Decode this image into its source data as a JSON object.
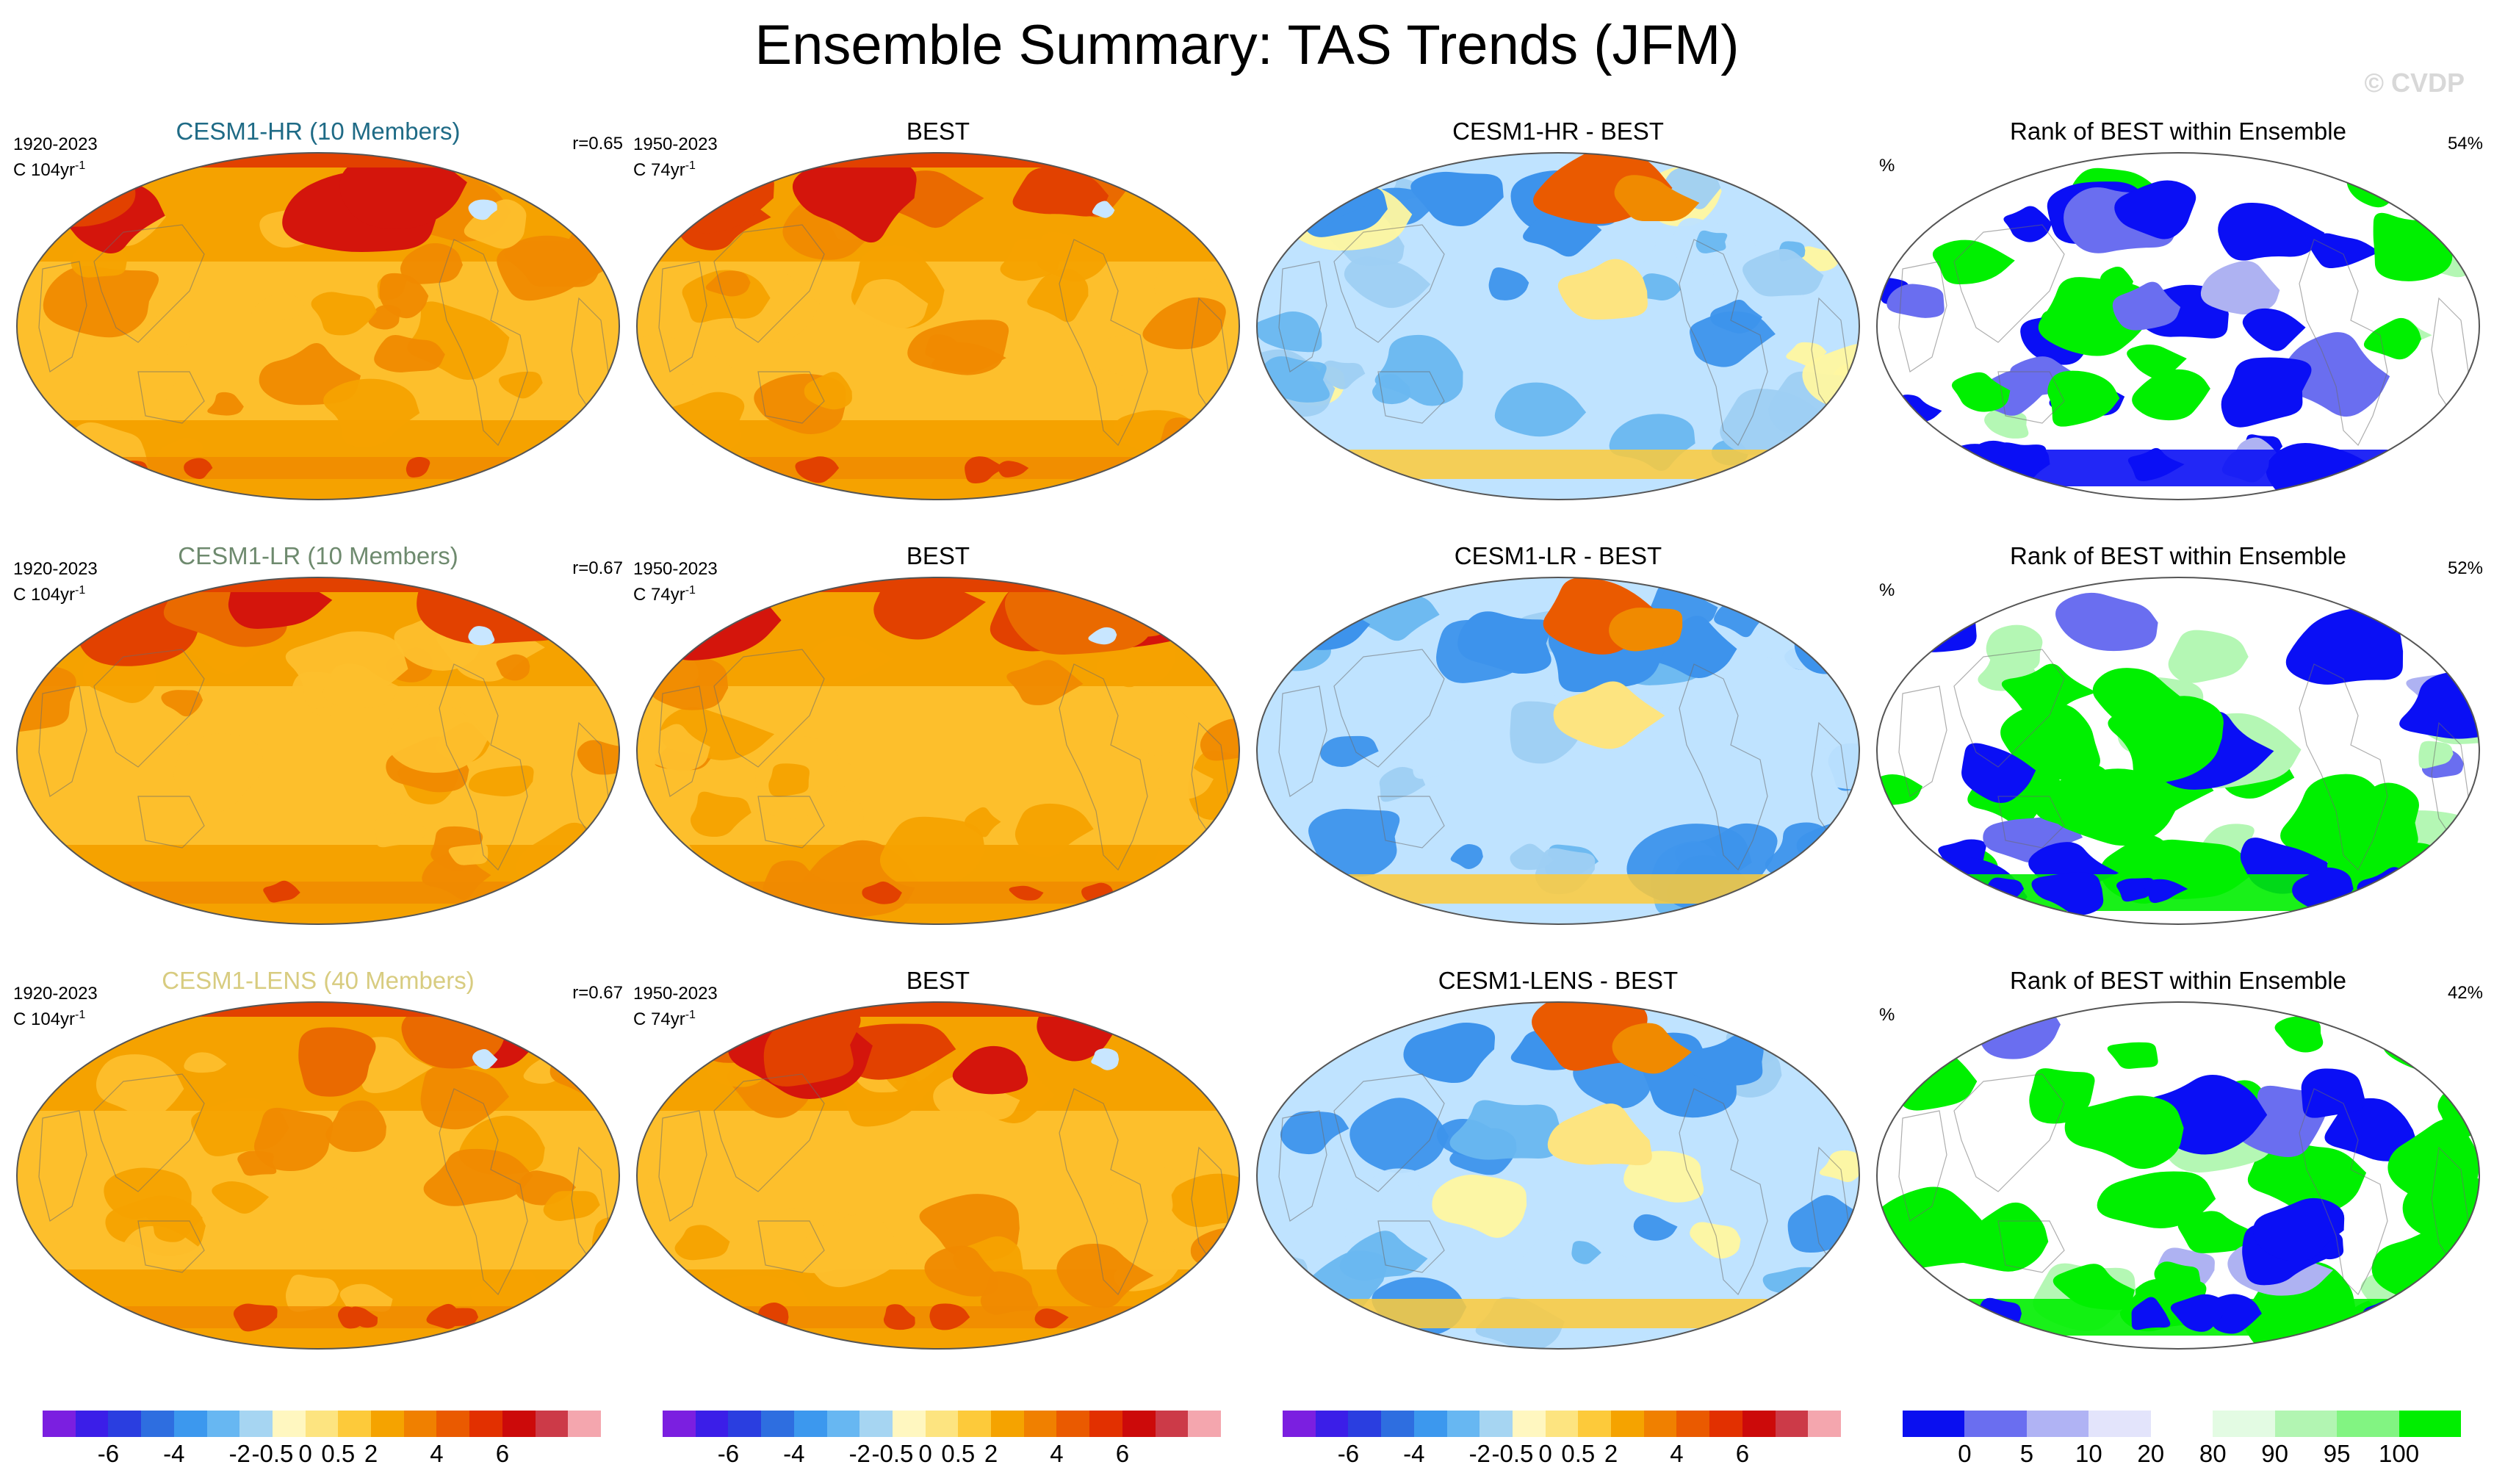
{
  "title": "Ensemble Summary: TAS Trends (JFM)",
  "watermark": "© CVDP",
  "colors": {
    "warm": [
      "#fdbf2c",
      "#f5a200",
      "#f08a00",
      "#ea6a00",
      "#e24100",
      "#d4150c"
    ],
    "cool": [
      "#fff7a0",
      "#bfe3ff",
      "#9ecff3",
      "#69b7f0",
      "#3d93ec",
      "#2e5cd6"
    ],
    "rank": [
      "#0a0ff5",
      "#6a6ef0",
      "#aeb2f2",
      "#e6e7fb",
      "#ffffff",
      "#e6fbe6",
      "#b4f7b4",
      "#80f880",
      "#00f000"
    ],
    "cvdp_title_hr": "#2c6f8a",
    "cvdp_title_lr": "#6a8a6a",
    "cvdp_title_lens": "#d2c878"
  },
  "rows": [
    {
      "model": {
        "title": "CESM1-HR (10 Members)",
        "period": "1920-2023",
        "units": "C 104yr",
        "units_sup": "-1",
        "corr": "r=0.65",
        "color": "#1f6b86",
        "style": "warm"
      },
      "obs": {
        "title": "BEST",
        "period": "1950-2023",
        "units": "C 74yr",
        "units_sup": "-1",
        "style": "warm2"
      },
      "diff": {
        "title": "CESM1-HR - BEST",
        "style": "cool"
      },
      "rank": {
        "title": "Rank of BEST within Ensemble",
        "pct_label": "%",
        "value": "54%",
        "style": "rank1"
      }
    },
    {
      "model": {
        "title": "CESM1-LR (10 Members)",
        "period": "1920-2023",
        "units": "C 104yr",
        "units_sup": "-1",
        "corr": "r=0.67",
        "color": "#6e8a6e",
        "style": "warm"
      },
      "obs": {
        "title": "BEST",
        "period": "1950-2023",
        "units": "C 74yr",
        "units_sup": "-1",
        "style": "warm2"
      },
      "diff": {
        "title": "CESM1-LR - BEST",
        "style": "cool"
      },
      "rank": {
        "title": "Rank of BEST within Ensemble",
        "pct_label": "%",
        "value": "52%",
        "style": "rank2"
      }
    },
    {
      "model": {
        "title": "CESM1-LENS (40 Members)",
        "period": "1920-2023",
        "units": "C 104yr",
        "units_sup": "-1",
        "corr": "r=0.67",
        "color": "#d8cc80",
        "style": "warm"
      },
      "obs": {
        "title": "BEST",
        "period": "1950-2023",
        "units": "C 74yr",
        "units_sup": "-1",
        "style": "warm2"
      },
      "diff": {
        "title": "CESM1-LENS - BEST",
        "style": "cool"
      },
      "rank": {
        "title": "Rank of BEST within Ensemble",
        "pct_label": "%",
        "value": "42%",
        "style": "rank3"
      }
    }
  ],
  "colorbars": [
    {
      "name": "trend",
      "labels": [
        "-6",
        "-4",
        "-2",
        "-0.5",
        "0",
        "0.5",
        "2",
        "4",
        "6"
      ],
      "colors": [
        "#7b1fe0",
        "#3b1ee8",
        "#2a3ee0",
        "#2e6ee0",
        "#3c98ee",
        "#67b7f2",
        "#a6d5f2",
        "#fff7c0",
        "#fde480",
        "#fdca3a",
        "#f5a300",
        "#f08000",
        "#ea5a00",
        "#e23000",
        "#cc0a0a",
        "#cc3a48",
        "#f4a6ae"
      ]
    },
    {
      "name": "trend",
      "labels": [
        "-6",
        "-4",
        "-2",
        "-0.5",
        "0",
        "0.5",
        "2",
        "4",
        "6"
      ],
      "colors": [
        "#7b1fe0",
        "#3b1ee8",
        "#2a3ee0",
        "#2e6ee0",
        "#3c98ee",
        "#67b7f2",
        "#a6d5f2",
        "#fff7c0",
        "#fde480",
        "#fdca3a",
        "#f5a300",
        "#f08000",
        "#ea5a00",
        "#e23000",
        "#cc0a0a",
        "#cc3a48",
        "#f4a6ae"
      ]
    },
    {
      "name": "trend",
      "labels": [
        "-6",
        "-4",
        "-2",
        "-0.5",
        "0",
        "0.5",
        "2",
        "4",
        "6"
      ],
      "colors": [
        "#7b1fe0",
        "#3b1ee8",
        "#2a3ee0",
        "#2e6ee0",
        "#3c98ee",
        "#67b7f2",
        "#a6d5f2",
        "#fff7c0",
        "#fde480",
        "#fdca3a",
        "#f5a300",
        "#f08000",
        "#ea5a00",
        "#e23000",
        "#cc0a0a",
        "#cc3a48",
        "#f4a6ae"
      ]
    },
    {
      "name": "rank",
      "labels": [
        "0",
        "5",
        "10",
        "20",
        "80",
        "90",
        "95",
        "100"
      ],
      "colors": [
        "#0a0ff0",
        "#6a6ef0",
        "#b0b3f4",
        "#e3e4fb",
        "#ffffff",
        "#e3fbe3",
        "#b2f5b2",
        "#82f482",
        "#00ee00"
      ]
    }
  ]
}
